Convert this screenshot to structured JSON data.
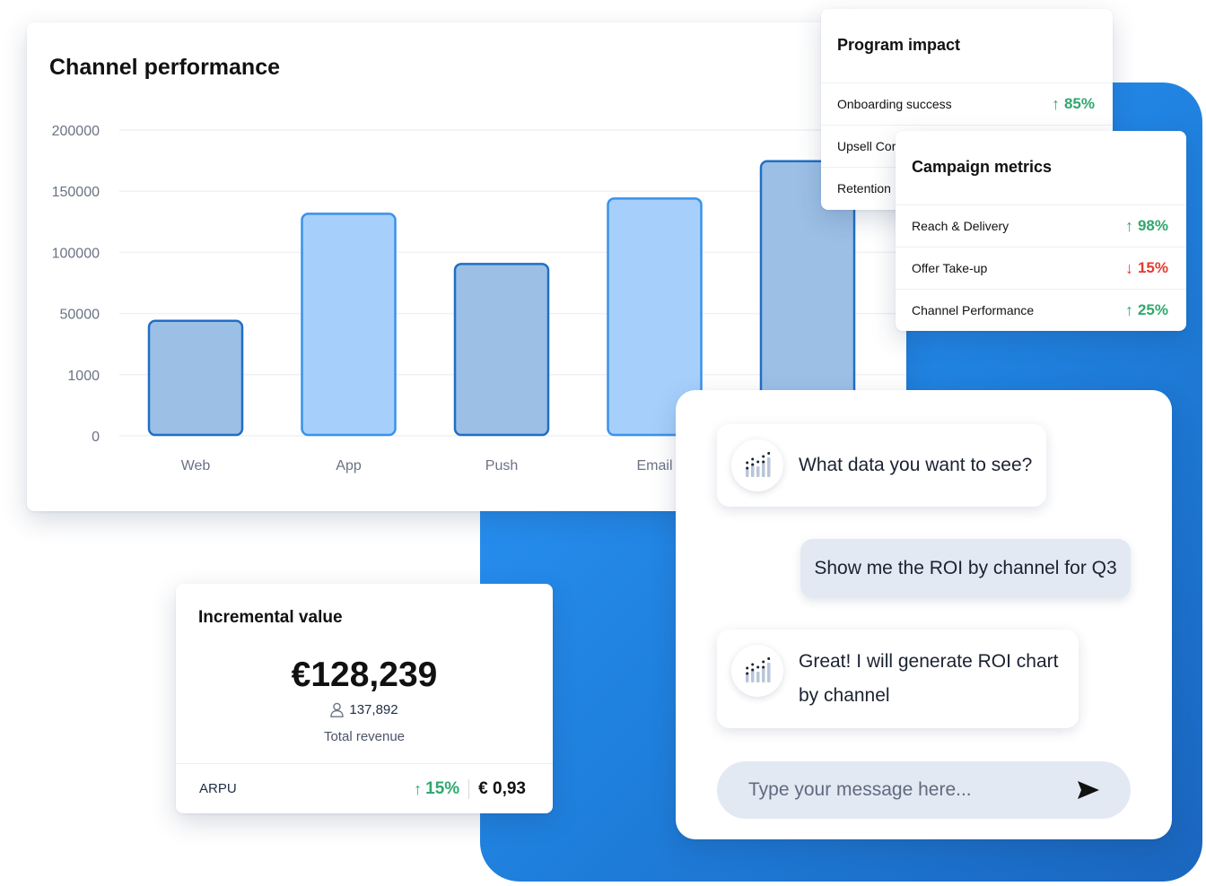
{
  "chart_card": {
    "title": "Channel performance"
  },
  "chart_data": {
    "type": "bar",
    "title": "Channel performance",
    "categories": [
      "Web",
      "App",
      "Push",
      "Email",
      ""
    ],
    "y_tick_labels": [
      "0",
      "1000",
      "50000",
      "100000",
      "150000",
      "200000"
    ],
    "tick_values_by_gridline": [
      0,
      1,
      2,
      3,
      4,
      5
    ],
    "values_gridline_units": [
      1.88,
      3.63,
      2.81,
      3.88,
      4.49
    ],
    "series_styles": [
      "dark",
      "light",
      "dark",
      "light",
      "dark"
    ],
    "colors": {
      "dark_fill": "#9cbfe6",
      "dark_stroke": "#1f6fc4",
      "light_fill": "#a6d0fb",
      "light_stroke": "#3a92ea",
      "grid": "#eef1f5"
    },
    "grid": true
  },
  "program_impact": {
    "title": "Program impact",
    "rows": [
      {
        "label": "Onboarding success",
        "value": "85%",
        "trend": "up"
      },
      {
        "label": "Upsell Cor",
        "value": "",
        "trend": ""
      },
      {
        "label": "Retention",
        "value": "",
        "trend": ""
      }
    ]
  },
  "campaign_metrics": {
    "title": "Campaign metrics",
    "rows": [
      {
        "label": "Reach & Delivery",
        "value": "98%",
        "trend": "up"
      },
      {
        "label": "Offer Take-up",
        "value": "15%",
        "trend": "down"
      },
      {
        "label": "Channel Performance",
        "value": "25%",
        "trend": "up"
      }
    ]
  },
  "incremental_value": {
    "title": "Incremental value",
    "amount": "€128,239",
    "users": "137,892",
    "subtitle": "Total revenue",
    "arpu_label": "ARPU",
    "arpu_change": "15%",
    "arpu_value": "€ 0,93",
    "user_icon": "user-icon"
  },
  "chat": {
    "bot_question": "What data you want to see?",
    "user_message": "Show me the ROI by channel for Q3",
    "bot_reply": "Great! I will generate ROI chart by channel",
    "input_placeholder": "Type your message here...",
    "send_icon": "send-icon",
    "bot_icon": "bot-chart-icon"
  },
  "colors": {
    "up": "#2fa86e",
    "down": "#e53b2c",
    "backdrop": "#2e8ff0"
  }
}
